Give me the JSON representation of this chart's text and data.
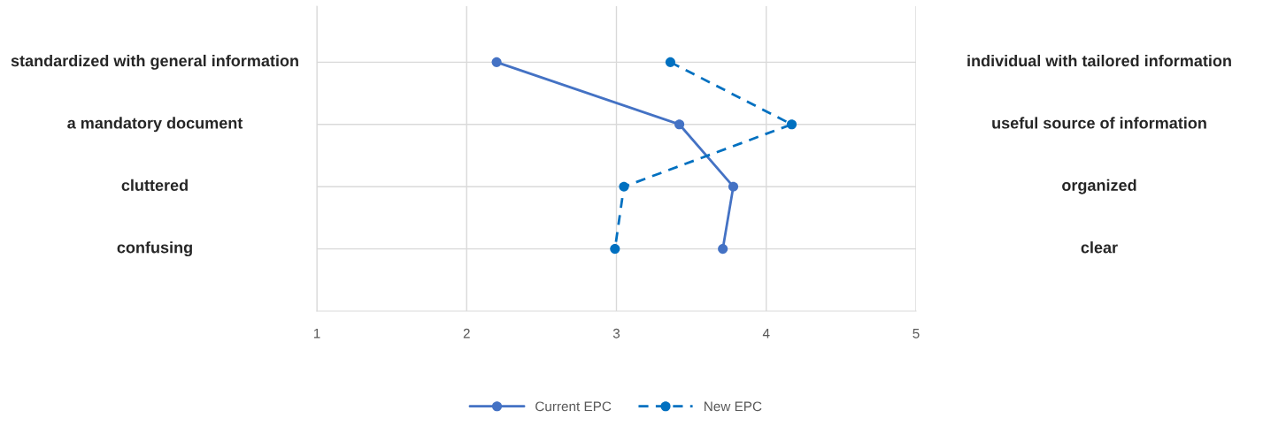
{
  "chart_data": {
    "type": "line",
    "orientation": "horizontal",
    "categories": [
      "standardized with general information",
      "a mandatory document",
      "cluttered",
      "confusing"
    ],
    "y2_categories": [
      "individual with tailored information",
      "useful source of information",
      "organized",
      "clear"
    ],
    "series": [
      {
        "name": "Current EPC",
        "color": "#4472c4",
        "line_style": "solid",
        "values": [
          2.2,
          3.42,
          3.78,
          3.71
        ]
      },
      {
        "name": "New EPC",
        "color": "#0070c0",
        "line_style": "dashed",
        "values": [
          3.36,
          4.17,
          3.05,
          2.99
        ]
      }
    ],
    "xlim": [
      1,
      5
    ],
    "xticks": [
      1,
      2,
      3,
      4,
      5
    ],
    "grid": true,
    "legend": "bottom",
    "marker": "circle"
  }
}
